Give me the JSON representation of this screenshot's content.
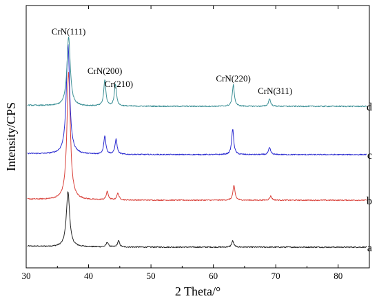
{
  "chart_data": {
    "type": "line",
    "xlabel": "2 Theta/°",
    "ylabel": "Intensity/CPS",
    "xlim": [
      30,
      85
    ],
    "xticks": [
      "30",
      "40",
      "50",
      "60",
      "70",
      "80"
    ],
    "yticks_shown": false,
    "grid": false,
    "series": [
      {
        "name": "a",
        "color": "#222222",
        "baseline": 0,
        "peaks": [
          {
            "x": 36.7,
            "h": 80
          },
          {
            "x": 43.0,
            "h": 7
          },
          {
            "x": 44.8,
            "h": 9
          },
          {
            "x": 63.1,
            "h": 9
          }
        ]
      },
      {
        "name": "b",
        "color": "#d9413a",
        "baseline": 68,
        "peaks": [
          {
            "x": 36.8,
            "h": 185
          },
          {
            "x": 43.0,
            "h": 12
          },
          {
            "x": 44.7,
            "h": 10
          },
          {
            "x": 63.3,
            "h": 21
          },
          {
            "x": 69.2,
            "h": 6
          }
        ]
      },
      {
        "name": "c",
        "color": "#2a2ad0",
        "baseline": 134,
        "peaks": [
          {
            "x": 36.7,
            "h": 160
          },
          {
            "x": 42.6,
            "h": 27
          },
          {
            "x": 44.4,
            "h": 22
          },
          {
            "x": 63.1,
            "h": 37
          },
          {
            "x": 69.0,
            "h": 10
          }
        ]
      },
      {
        "name": "d",
        "color": "#3b8f95",
        "baseline": 204,
        "peaks": [
          {
            "x": 36.8,
            "h": 100
          },
          {
            "x": 42.6,
            "h": 38
          },
          {
            "x": 44.3,
            "h": 32
          },
          {
            "x": 63.2,
            "h": 31
          },
          {
            "x": 69.0,
            "h": 11
          }
        ]
      }
    ],
    "annotations": [
      {
        "text": "CrN(111)",
        "x": 36.8
      },
      {
        "text": "CrN(200)",
        "x": 42.6
      },
      {
        "text": "Cr(210)",
        "x": 44.3
      },
      {
        "text": "CrN(220)",
        "x": 63.2
      },
      {
        "text": "CrN(311)",
        "x": 69.0
      }
    ]
  }
}
